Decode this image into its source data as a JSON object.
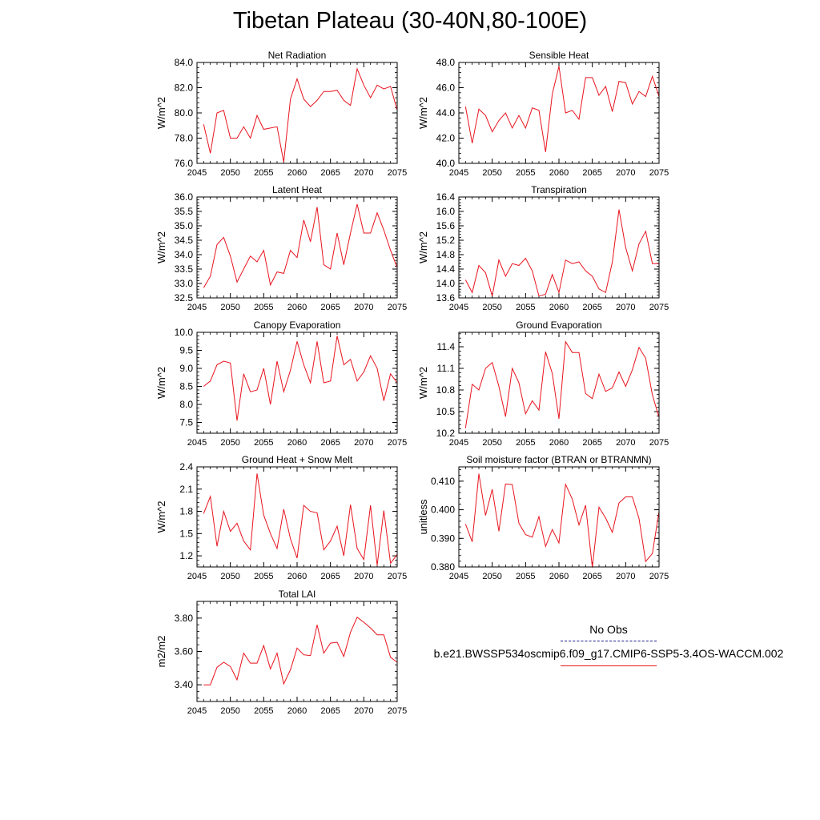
{
  "title": "Tibetan Plateau (30-40N,80-100E)",
  "legend": {
    "obs_label": "No Obs",
    "obs_color": "#1a1a8c",
    "model_label": "b.e21.BWSSP534oscmip6.f09_g17.CMIP6-SSP5-3.4OS-WACCM.002",
    "model_color": "#e8141e"
  },
  "chart_data": [
    {
      "type": "line",
      "title": "Net Radiation",
      "ylabel": "W/m^2",
      "xlim": [
        2045,
        2075
      ],
      "ylim": [
        76,
        84
      ],
      "yticks": [
        76,
        78,
        80,
        82,
        84
      ],
      "ytick_labels": [
        "76.0",
        "78.0",
        "80.0",
        "82.0",
        "84.0"
      ],
      "xticks": [
        2045,
        2050,
        2055,
        2060,
        2065,
        2070,
        2075
      ],
      "xtick_labels": [
        "2045",
        "2050",
        "2055",
        "2060",
        "2065",
        "2070",
        "2075"
      ],
      "x_start": 2046,
      "values": [
        79.1,
        76.8,
        80.0,
        80.2,
        78.0,
        78.0,
        78.9,
        78.0,
        79.8,
        78.7,
        78.8,
        78.9,
        76.1,
        81.1,
        82.7,
        81.1,
        80.5,
        81.0,
        81.7,
        81.7,
        81.8,
        81.0,
        80.6,
        83.5,
        82.2,
        81.2,
        82.2,
        81.9,
        82.1,
        80.2
      ]
    },
    {
      "type": "line",
      "title": "Sensible Heat",
      "ylabel": "W/m^2",
      "xlim": [
        2045,
        2075
      ],
      "ylim": [
        40,
        48
      ],
      "yticks": [
        40,
        42,
        44,
        46,
        48
      ],
      "ytick_labels": [
        "40.0",
        "42.0",
        "44.0",
        "46.0",
        "48.0"
      ],
      "xticks": [
        2045,
        2050,
        2055,
        2060,
        2065,
        2070,
        2075
      ],
      "xtick_labels": [
        "2045",
        "2050",
        "2055",
        "2060",
        "2065",
        "2070",
        "2075"
      ],
      "x_start": 2046,
      "values": [
        44.5,
        41.6,
        44.3,
        43.8,
        42.5,
        43.4,
        44.0,
        42.8,
        43.8,
        42.8,
        44.4,
        44.2,
        40.9,
        45.5,
        47.7,
        44.0,
        44.2,
        43.5,
        46.8,
        46.8,
        45.4,
        46.1,
        44.1,
        46.5,
        46.4,
        44.7,
        45.7,
        45.3,
        46.9,
        45.3
      ]
    },
    {
      "type": "line",
      "title": "Latent Heat",
      "ylabel": "W/m^2",
      "xlim": [
        2045,
        2075
      ],
      "ylim": [
        32.5,
        36
      ],
      "yticks": [
        32.5,
        33,
        33.5,
        34,
        34.5,
        35,
        35.5,
        36
      ],
      "ytick_labels": [
        "32.5",
        "33.0",
        "33.5",
        "34.0",
        "34.5",
        "35.0",
        "35.5",
        "36.0"
      ],
      "xticks": [
        2045,
        2050,
        2055,
        2060,
        2065,
        2070,
        2075
      ],
      "xtick_labels": [
        "2045",
        "2050",
        "2055",
        "2060",
        "2065",
        "2070",
        "2075"
      ],
      "x_start": 2046,
      "values": [
        32.85,
        33.25,
        34.35,
        34.6,
        33.95,
        33.05,
        33.5,
        33.95,
        33.75,
        34.15,
        32.95,
        33.4,
        33.35,
        34.15,
        33.9,
        35.2,
        34.45,
        35.65,
        33.65,
        33.5,
        34.75,
        33.65,
        34.75,
        35.75,
        34.75,
        34.75,
        35.45,
        34.85,
        34.15,
        33.55
      ]
    },
    {
      "type": "line",
      "title": "Transpiration",
      "ylabel": "W/m^2",
      "xlim": [
        2045,
        2075
      ],
      "ylim": [
        13.6,
        16.4
      ],
      "yticks": [
        13.6,
        14.0,
        14.4,
        14.8,
        15.2,
        15.6,
        16.0,
        16.4
      ],
      "ytick_labels": [
        "13.6",
        "14.0",
        "14.4",
        "14.8",
        "15.2",
        "15.6",
        "16.0",
        "16.4"
      ],
      "xticks": [
        2045,
        2050,
        2055,
        2060,
        2065,
        2070,
        2075
      ],
      "xtick_labels": [
        "2045",
        "2050",
        "2055",
        "2060",
        "2065",
        "2070",
        "2075"
      ],
      "x_start": 2046,
      "values": [
        14.1,
        13.75,
        14.5,
        14.3,
        13.65,
        14.65,
        14.2,
        14.55,
        14.5,
        14.7,
        14.35,
        13.65,
        13.7,
        14.25,
        13.75,
        14.65,
        14.55,
        14.6,
        14.35,
        14.2,
        13.85,
        13.75,
        14.6,
        16.05,
        15.0,
        14.35,
        15.1,
        15.45,
        14.55,
        14.55
      ]
    },
    {
      "type": "line",
      "title": "Canopy Evaporation",
      "ylabel": "W/m^2",
      "xlim": [
        2045,
        2075
      ],
      "ylim": [
        7.2,
        10.0
      ],
      "yticks": [
        7.5,
        8.0,
        8.5,
        9.0,
        9.5,
        10.0
      ],
      "ytick_labels": [
        "7.5",
        "8.0",
        "8.5",
        "9.0",
        "9.5",
        "10.0"
      ],
      "xticks": [
        2045,
        2050,
        2055,
        2060,
        2065,
        2070,
        2075
      ],
      "xtick_labels": [
        "2045",
        "2050",
        "2055",
        "2060",
        "2065",
        "2070",
        "2075"
      ],
      "x_start": 2046,
      "values": [
        8.5,
        8.65,
        9.1,
        9.2,
        9.15,
        7.55,
        8.85,
        8.35,
        8.4,
        9.0,
        8.0,
        9.2,
        8.35,
        8.95,
        9.75,
        9.1,
        8.6,
        9.75,
        8.6,
        8.65,
        9.9,
        9.1,
        9.25,
        8.65,
        8.9,
        9.35,
        9.0,
        8.1,
        8.85,
        8.6
      ]
    },
    {
      "type": "line",
      "title": "Ground Evaporation",
      "ylabel": "W/m^2",
      "xlim": [
        2045,
        2075
      ],
      "ylim": [
        10.2,
        11.6
      ],
      "yticks": [
        10.2,
        10.5,
        10.8,
        11.1,
        11.4
      ],
      "ytick_labels": [
        "10.2",
        "10.5",
        "10.8",
        "11.1",
        "11.4"
      ],
      "xticks": [
        2045,
        2050,
        2055,
        2060,
        2065,
        2070,
        2075
      ],
      "xtick_labels": [
        "2045",
        "2050",
        "2055",
        "2060",
        "2065",
        "2070",
        "2075"
      ],
      "x_start": 2046,
      "values": [
        10.27,
        10.88,
        10.8,
        11.1,
        11.18,
        10.85,
        10.43,
        11.1,
        10.9,
        10.47,
        10.65,
        10.52,
        11.33,
        11.03,
        10.4,
        11.47,
        11.32,
        11.32,
        10.75,
        10.68,
        11.02,
        10.78,
        10.83,
        11.05,
        10.85,
        11.08,
        11.39,
        11.24,
        10.73,
        10.42
      ]
    },
    {
      "type": "line",
      "title": "Ground Heat + Snow Melt",
      "ylabel": "W/m^2",
      "xlim": [
        2045,
        2075
      ],
      "ylim": [
        1.05,
        2.4
      ],
      "yticks": [
        1.2,
        1.5,
        1.8,
        2.1,
        2.4
      ],
      "ytick_labels": [
        "1.2",
        "1.5",
        "1.8",
        "2.1",
        "2.4"
      ],
      "xticks": [
        2045,
        2050,
        2055,
        2060,
        2065,
        2070,
        2075
      ],
      "xtick_labels": [
        "2045",
        "2050",
        "2055",
        "2060",
        "2065",
        "2070",
        "2075"
      ],
      "x_start": 2046,
      "values": [
        1.77,
        2.0,
        1.33,
        1.8,
        1.53,
        1.64,
        1.4,
        1.28,
        2.31,
        1.75,
        1.5,
        1.3,
        1.83,
        1.43,
        1.17,
        1.88,
        1.8,
        1.78,
        1.28,
        1.4,
        1.6,
        1.2,
        1.89,
        1.3,
        1.15,
        1.88,
        1.07,
        1.81,
        1.1,
        1.22
      ]
    },
    {
      "type": "line",
      "title": "Soil moisture factor (BTRAN or BTRANMN)",
      "ylabel": "unitless",
      "xlim": [
        2045,
        2075
      ],
      "ylim": [
        0.38,
        0.415
      ],
      "yticks": [
        0.38,
        0.39,
        0.4,
        0.41
      ],
      "ytick_labels": [
        "0.380",
        "0.390",
        "0.400",
        "0.410"
      ],
      "xticks": [
        2045,
        2050,
        2055,
        2060,
        2065,
        2070,
        2075
      ],
      "xtick_labels": [
        "2045",
        "2050",
        "2055",
        "2060",
        "2065",
        "2070",
        "2075"
      ],
      "x_start": 2046,
      "values": [
        0.395,
        0.3888,
        0.4126,
        0.398,
        0.4072,
        0.3925,
        0.409,
        0.4088,
        0.3953,
        0.3913,
        0.3904,
        0.3976,
        0.3872,
        0.3931,
        0.3884,
        0.4089,
        0.4037,
        0.3947,
        0.4016,
        0.3798,
        0.4009,
        0.3971,
        0.3921,
        0.4024,
        0.4045,
        0.4045,
        0.3969,
        0.3819,
        0.3847,
        0.3994
      ]
    },
    {
      "type": "line",
      "title": "Total LAI",
      "ylabel": "m2/m2",
      "xlim": [
        2045,
        2075
      ],
      "ylim": [
        3.3,
        3.9
      ],
      "yticks": [
        3.4,
        3.6,
        3.8
      ],
      "ytick_labels": [
        "3.40",
        "3.60",
        "3.80"
      ],
      "xticks": [
        2045,
        2050,
        2055,
        2060,
        2065,
        2070,
        2075
      ],
      "xtick_labels": [
        "2045",
        "2050",
        "2055",
        "2060",
        "2065",
        "2070",
        "2075"
      ],
      "x_start": 2046,
      "values": [
        3.4,
        3.4,
        3.505,
        3.535,
        3.51,
        3.43,
        3.59,
        3.53,
        3.53,
        3.635,
        3.495,
        3.59,
        3.405,
        3.49,
        3.62,
        3.58,
        3.575,
        3.76,
        3.59,
        3.65,
        3.655,
        3.57,
        3.715,
        3.805,
        3.775,
        3.74,
        3.7,
        3.7,
        3.565,
        3.535
      ]
    }
  ]
}
